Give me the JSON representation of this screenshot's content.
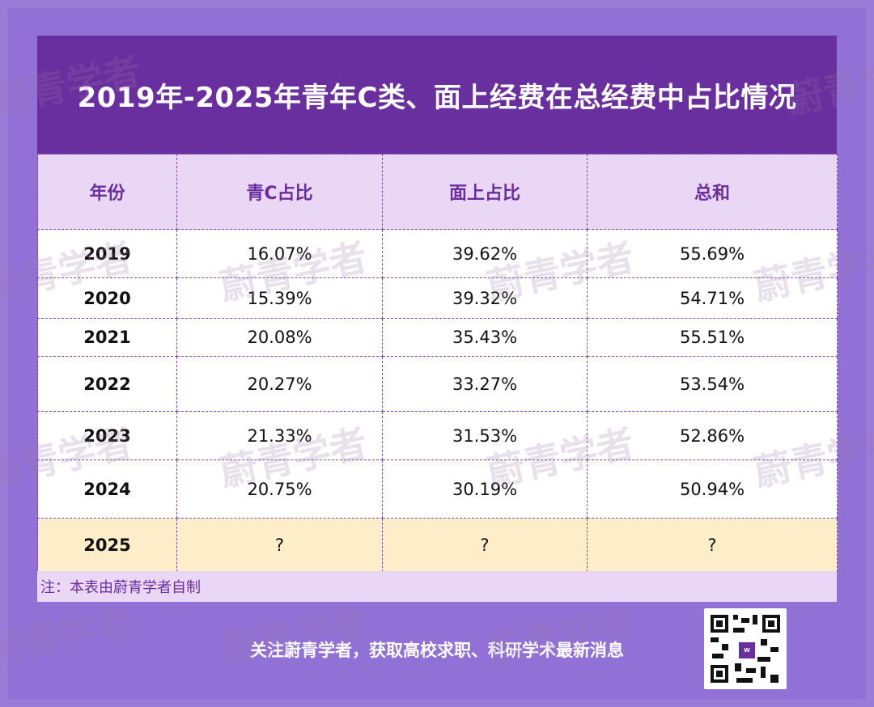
{
  "title": "2019年-2025年青年C类、面上经费在总经费中占比情况",
  "table": {
    "headers": [
      "年份",
      "青C占比",
      "面上占比",
      "总和"
    ],
    "rows": [
      [
        "2019",
        "16.07%",
        "39.62%",
        "55.69%"
      ],
      [
        "2020",
        "15.39%",
        "39.32%",
        "54.71%"
      ],
      [
        "2021",
        "20.08%",
        "35.43%",
        "55.51%"
      ],
      [
        "2022",
        "20.27%",
        "33.27%",
        "53.54%"
      ],
      [
        "2023",
        "21.33%",
        "31.53%",
        "52.86%"
      ],
      [
        "2024",
        "20.75%",
        "30.19%",
        "50.94%"
      ],
      [
        "2025",
        "?",
        "?",
        "?"
      ]
    ]
  },
  "note": "注：本表由蔚青学者自制",
  "footer": "关注蔚青学者，获取高校求职、科研学术最新消息",
  "watermark": "蔚青学者",
  "colors": {
    "background": "#9271d6",
    "title_bar": "#6a2f9e",
    "header_row": "#ead6f5",
    "highlight_row": "#fdedc9"
  }
}
